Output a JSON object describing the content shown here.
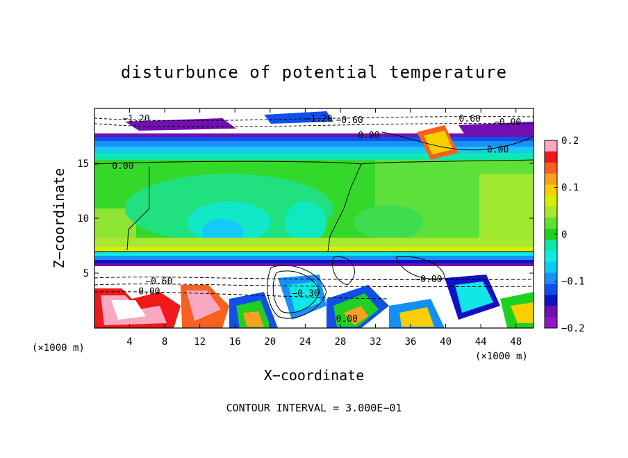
{
  "chart_data": {
    "type": "heatmap",
    "title": "disturbunce of potential temperature",
    "xlabel": "X−coordinate",
    "ylabel": "Z−coordinate",
    "x_unit_left": "(×1000 m)",
    "x_unit_right": "(×1000 m)",
    "xlim": [
      0,
      50
    ],
    "ylim": [
      0,
      20
    ],
    "x_ticks": [
      4,
      8,
      12,
      16,
      20,
      24,
      28,
      32,
      36,
      40,
      44,
      48
    ],
    "x_tick_labels": [
      "4",
      "8",
      "12",
      "16",
      "20",
      "24",
      "28",
      "32",
      "36",
      "40",
      "44",
      "48"
    ],
    "y_ticks": [
      5,
      10,
      15
    ],
    "y_tick_labels": [
      "5",
      "10",
      "15"
    ],
    "colorbar": {
      "range": [
        -0.2,
        0.2
      ],
      "ticks": [
        0.2,
        0.1,
        0,
        -0.1,
        -0.2
      ],
      "tick_labels": [
        "0.2",
        "0.1",
        "0",
        "−0.1",
        "−0.2"
      ],
      "colors": [
        "#f8a8c0",
        "#f01818",
        "#f86020",
        "#f8a020",
        "#f8d000",
        "#d8f000",
        "#a8e830",
        "#60e030",
        "#20d020",
        "#10e8a0",
        "#10e8e8",
        "#10c8f8",
        "#1890f8",
        "#1050e8",
        "#1010c8",
        "#7010b0",
        "#9018c0"
      ]
    },
    "contour_labels": [
      {
        "text": "−1.20",
        "x": 3.2,
        "z": 19.1
      },
      {
        "text": "−1.20",
        "x": 24.0,
        "z": 19.1
      },
      {
        "text": "−0.60",
        "x": 27.5,
        "z": 19.0
      },
      {
        "text": "0.60",
        "x": 41.5,
        "z": 19.1
      },
      {
        "text": "−0.00",
        "x": 45.5,
        "z": 18.8
      },
      {
        "text": "0.00",
        "x": 30.0,
        "z": 17.6
      },
      {
        "text": "0.00",
        "x": 44.7,
        "z": 16.3
      },
      {
        "text": "0.00",
        "x": 2.0,
        "z": 14.8
      },
      {
        "text": "−0.60",
        "x": 5.8,
        "z": 4.3
      },
      {
        "text": "0.00",
        "x": 5.0,
        "z": 3.4
      },
      {
        "text": "0.00",
        "x": 27.5,
        "z": 0.9
      },
      {
        "text": "−0.30",
        "x": 22.5,
        "z": 3.2
      },
      {
        "text": "−0.00",
        "x": 36.5,
        "z": 4.5
      }
    ],
    "footer": "CONTOUR INTERVAL = 3.000E−01",
    "grid": false,
    "legend": "colorbar-right"
  }
}
